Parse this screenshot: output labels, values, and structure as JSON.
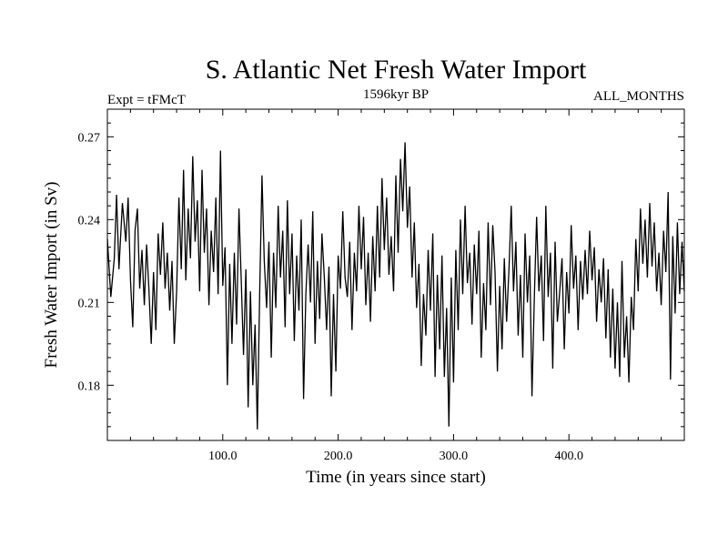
{
  "chart_data": {
    "type": "line",
    "title": "S. Atlantic Net Fresh Water Import",
    "subtitle_left": "Expt = tFMcT",
    "subtitle_center": "1596kyr BP",
    "subtitle_right": "ALL_MONTHS",
    "xlabel": "Time (in years since start)",
    "ylabel": "Fresh Water Import (in Sv)",
    "xlim": [
      0,
      500
    ],
    "ylim": [
      0.16,
      0.28
    ],
    "xticks": [
      100,
      200,
      300,
      400
    ],
    "xtick_labels": [
      "100.0",
      "200.0",
      "300.0",
      "400.0"
    ],
    "yticks": [
      0.18,
      0.21,
      0.24,
      0.27
    ],
    "ytick_labels": [
      "0.18",
      "0.21",
      "0.24",
      "0.27"
    ],
    "series": [
      {
        "name": "fresh water import",
        "color": "#000000",
        "anchors": [
          [
            0,
            0.233
          ],
          [
            3,
            0.212
          ],
          [
            6,
            0.226
          ],
          [
            8,
            0.249
          ],
          [
            10,
            0.222
          ],
          [
            13,
            0.246
          ],
          [
            16,
            0.232
          ],
          [
            18,
            0.248
          ],
          [
            20,
            0.218
          ],
          [
            22,
            0.201
          ],
          [
            24,
            0.236
          ],
          [
            26,
            0.244
          ],
          [
            28,
            0.215
          ],
          [
            30,
            0.229
          ],
          [
            32,
            0.209
          ],
          [
            34,
            0.231
          ],
          [
            36,
            0.215
          ],
          [
            38,
            0.195
          ],
          [
            40,
            0.221
          ],
          [
            42,
            0.2
          ],
          [
            44,
            0.235
          ],
          [
            46,
            0.22
          ],
          [
            48,
            0.239
          ],
          [
            50,
            0.215
          ],
          [
            52,
            0.228
          ],
          [
            54,
            0.207
          ],
          [
            56,
            0.225
          ],
          [
            58,
            0.195
          ],
          [
            60,
            0.214
          ],
          [
            62,
            0.248
          ],
          [
            64,
            0.222
          ],
          [
            66,
            0.258
          ],
          [
            68,
            0.218
          ],
          [
            70,
            0.244
          ],
          [
            72,
            0.226
          ],
          [
            74,
            0.263
          ],
          [
            76,
            0.232
          ],
          [
            78,
            0.247
          ],
          [
            80,
            0.214
          ],
          [
            82,
            0.258
          ],
          [
            84,
            0.228
          ],
          [
            86,
            0.244
          ],
          [
            88,
            0.209
          ],
          [
            90,
            0.236
          ],
          [
            92,
            0.221
          ],
          [
            94,
            0.248
          ],
          [
            96,
            0.213
          ],
          [
            98,
            0.265
          ],
          [
            100,
            0.216
          ],
          [
            102,
            0.23
          ],
          [
            104,
            0.18
          ],
          [
            106,
            0.224
          ],
          [
            108,
            0.195
          ],
          [
            110,
            0.228
          ],
          [
            112,
            0.202
          ],
          [
            114,
            0.244
          ],
          [
            116,
            0.218
          ],
          [
            118,
            0.191
          ],
          [
            120,
            0.222
          ],
          [
            122,
            0.172
          ],
          [
            124,
            0.214
          ],
          [
            126,
            0.18
          ],
          [
            128,
            0.202
          ],
          [
            130,
            0.164
          ],
          [
            132,
            0.214
          ],
          [
            134,
            0.256
          ],
          [
            136,
            0.225
          ],
          [
            138,
            0.208
          ],
          [
            140,
            0.232
          ],
          [
            142,
            0.19
          ],
          [
            144,
            0.228
          ],
          [
            146,
            0.208
          ],
          [
            148,
            0.245
          ],
          [
            150,
            0.219
          ],
          [
            152,
            0.236
          ],
          [
            154,
            0.201
          ],
          [
            156,
            0.247
          ],
          [
            158,
            0.213
          ],
          [
            160,
            0.235
          ],
          [
            162,
            0.196
          ],
          [
            164,
            0.227
          ],
          [
            166,
            0.207
          ],
          [
            168,
            0.24
          ],
          [
            170,
            0.175
          ],
          [
            172,
            0.213
          ],
          [
            174,
            0.231
          ],
          [
            176,
            0.21
          ],
          [
            178,
            0.243
          ],
          [
            180,
            0.195
          ],
          [
            182,
            0.225
          ],
          [
            184,
            0.204
          ],
          [
            186,
            0.235
          ],
          [
            188,
            0.219
          ],
          [
            190,
            0.2
          ],
          [
            192,
            0.223
          ],
          [
            194,
            0.176
          ],
          [
            196,
            0.213
          ],
          [
            198,
            0.185
          ],
          [
            200,
            0.227
          ],
          [
            202,
            0.215
          ],
          [
            204,
            0.243
          ],
          [
            206,
            0.219
          ],
          [
            208,
            0.212
          ],
          [
            210,
            0.232
          ],
          [
            212,
            0.2
          ],
          [
            214,
            0.228
          ],
          [
            216,
            0.214
          ],
          [
            218,
            0.245
          ],
          [
            220,
            0.222
          ],
          [
            222,
            0.241
          ],
          [
            224,
            0.209
          ],
          [
            226,
            0.228
          ],
          [
            228,
            0.203
          ],
          [
            230,
            0.234
          ],
          [
            232,
            0.214
          ],
          [
            234,
            0.245
          ],
          [
            236,
            0.219
          ],
          [
            238,
            0.255
          ],
          [
            240,
            0.229
          ],
          [
            242,
            0.248
          ],
          [
            244,
            0.22
          ],
          [
            246,
            0.234
          ],
          [
            248,
            0.214
          ],
          [
            250,
            0.256
          ],
          [
            252,
            0.228
          ],
          [
            254,
            0.262
          ],
          [
            256,
            0.243
          ],
          [
            258,
            0.268
          ],
          [
            260,
            0.237
          ],
          [
            262,
            0.252
          ],
          [
            264,
            0.219
          ],
          [
            266,
            0.239
          ],
          [
            268,
            0.208
          ],
          [
            270,
            0.224
          ],
          [
            272,
            0.187
          ],
          [
            274,
            0.213
          ],
          [
            276,
            0.198
          ],
          [
            278,
            0.229
          ],
          [
            280,
            0.207
          ],
          [
            282,
            0.235
          ],
          [
            284,
            0.183
          ],
          [
            286,
            0.22
          ],
          [
            288,
            0.193
          ],
          [
            290,
            0.227
          ],
          [
            292,
            0.183
          ],
          [
            294,
            0.208
          ],
          [
            296,
            0.165
          ],
          [
            298,
            0.219
          ],
          [
            300,
            0.181
          ],
          [
            302,
            0.229
          ],
          [
            304,
            0.2
          ],
          [
            306,
            0.24
          ],
          [
            308,
            0.213
          ],
          [
            310,
            0.245
          ],
          [
            312,
            0.217
          ],
          [
            314,
            0.228
          ],
          [
            316,
            0.202
          ],
          [
            318,
            0.231
          ],
          [
            320,
            0.213
          ],
          [
            322,
            0.236
          ],
          [
            324,
            0.19
          ],
          [
            326,
            0.217
          ],
          [
            328,
            0.2
          ],
          [
            330,
            0.239
          ],
          [
            332,
            0.209
          ],
          [
            334,
            0.238
          ],
          [
            336,
            0.221
          ],
          [
            338,
            0.185
          ],
          [
            340,
            0.216
          ],
          [
            342,
            0.193
          ],
          [
            344,
            0.226
          ],
          [
            346,
            0.203
          ],
          [
            348,
            0.222
          ],
          [
            350,
            0.245
          ],
          [
            352,
            0.214
          ],
          [
            354,
            0.232
          ],
          [
            356,
            0.198
          ],
          [
            358,
            0.22
          ],
          [
            360,
            0.19
          ],
          [
            362,
            0.235
          ],
          [
            364,
            0.21
          ],
          [
            366,
            0.227
          ],
          [
            368,
            0.176
          ],
          [
            370,
            0.212
          ],
          [
            372,
            0.241
          ],
          [
            374,
            0.214
          ],
          [
            376,
            0.227
          ],
          [
            378,
            0.196
          ],
          [
            380,
            0.245
          ],
          [
            382,
            0.212
          ],
          [
            384,
            0.228
          ],
          [
            386,
            0.186
          ],
          [
            388,
            0.232
          ],
          [
            390,
            0.203
          ],
          [
            392,
            0.214
          ],
          [
            394,
            0.226
          ],
          [
            396,
            0.193
          ],
          [
            398,
            0.221
          ],
          [
            400,
            0.206
          ],
          [
            402,
            0.238
          ],
          [
            404,
            0.215
          ],
          [
            406,
            0.227
          ],
          [
            408,
            0.2
          ],
          [
            410,
            0.225
          ],
          [
            412,
            0.211
          ],
          [
            414,
            0.229
          ],
          [
            416,
            0.213
          ],
          [
            418,
            0.236
          ],
          [
            420,
            0.218
          ],
          [
            422,
            0.23
          ],
          [
            424,
            0.203
          ],
          [
            426,
            0.222
          ],
          [
            428,
            0.21
          ],
          [
            430,
            0.226
          ],
          [
            432,
            0.197
          ],
          [
            434,
            0.222
          ],
          [
            436,
            0.19
          ],
          [
            438,
            0.215
          ],
          [
            440,
            0.186
          ],
          [
            442,
            0.21
          ],
          [
            444,
            0.183
          ],
          [
            446,
            0.225
          ],
          [
            448,
            0.19
          ],
          [
            450,
            0.205
          ],
          [
            452,
            0.181
          ],
          [
            454,
            0.212
          ],
          [
            456,
            0.2
          ],
          [
            458,
            0.233
          ],
          [
            460,
            0.214
          ],
          [
            462,
            0.244
          ],
          [
            464,
            0.224
          ],
          [
            466,
            0.24
          ],
          [
            468,
            0.219
          ],
          [
            470,
            0.246
          ],
          [
            472,
            0.223
          ],
          [
            474,
            0.239
          ],
          [
            476,
            0.214
          ],
          [
            478,
            0.228
          ],
          [
            480,
            0.209
          ],
          [
            482,
            0.236
          ],
          [
            484,
            0.221
          ],
          [
            486,
            0.25
          ],
          [
            488,
            0.182
          ],
          [
            490,
            0.234
          ],
          [
            492,
            0.206
          ],
          [
            494,
            0.239
          ],
          [
            496,
            0.213
          ],
          [
            498,
            0.232
          ],
          [
            500,
            0.214
          ]
        ]
      }
    ]
  }
}
